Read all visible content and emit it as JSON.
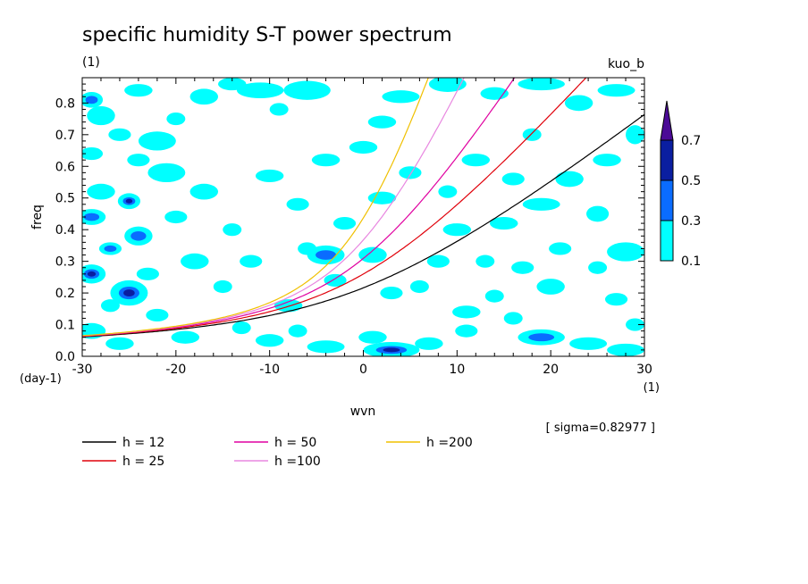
{
  "chart_data": {
    "type": "contour",
    "title": "specific humidity S-T power spectrum",
    "subtitle_left": "(1)",
    "subtitle_right": "kuo_b",
    "xlabel": "wvn",
    "ylabel": "freq",
    "x_unit": "(1)",
    "y_unit": "(day-1)",
    "xlim": [
      -30,
      30
    ],
    "ylim": [
      0,
      0.88
    ],
    "x_ticks": [
      -30,
      -20,
      -10,
      0,
      10,
      20,
      30
    ],
    "x_tick_labels": [
      "-30",
      "-20",
      "-10",
      "0",
      "10",
      "20",
      "30"
    ],
    "y_ticks": [
      0.0,
      0.1,
      0.2,
      0.3,
      0.4,
      0.5,
      0.6,
      0.7,
      0.8
    ],
    "y_tick_labels": [
      "0.0",
      "0.1",
      "0.2",
      "0.3",
      "0.4",
      "0.5",
      "0.6",
      "0.7",
      "0.8"
    ],
    "sigma_text": "[ sigma=0.82977 ]",
    "colorbar": {
      "levels": [
        "0.1",
        "0.3",
        "0.5",
        "0.7"
      ],
      "colors": [
        "#00ffff",
        "#0a6cff",
        "#0a1ea0",
        "#4b0a96"
      ]
    },
    "dispersion_curves": [
      {
        "name": "h = 12",
        "h": 12,
        "color": "#000000"
      },
      {
        "name": "h = 25",
        "h": 25,
        "color": "#e0000a"
      },
      {
        "name": "h = 50",
        "h": 50,
        "color": "#e000a0"
      },
      {
        "name": "h =100",
        "h": 100,
        "color": "#e887e0"
      },
      {
        "name": "h =200",
        "h": 200,
        "color": "#f0c000"
      }
    ],
    "blobs": [
      [
        -29,
        0.81,
        1.2,
        0.025,
        1
      ],
      [
        -28,
        0.76,
        1.5,
        0.03,
        0
      ],
      [
        -26,
        0.7,
        1.2,
        0.02,
        0
      ],
      [
        -24,
        0.84,
        1.5,
        0.02,
        0
      ],
      [
        -22,
        0.68,
        2.0,
        0.03,
        0
      ],
      [
        -20,
        0.75,
        1.0,
        0.02,
        0
      ],
      [
        -17,
        0.82,
        1.5,
        0.025,
        0
      ],
      [
        -14,
        0.86,
        1.5,
        0.02,
        0
      ],
      [
        -11,
        0.84,
        2.5,
        0.025,
        0
      ],
      [
        -9,
        0.78,
        1.0,
        0.02,
        0
      ],
      [
        -6,
        0.84,
        2.5,
        0.03,
        0
      ],
      [
        -4,
        0.62,
        1.5,
        0.02,
        0
      ],
      [
        0,
        0.66,
        1.5,
        0.02,
        0
      ],
      [
        2,
        0.74,
        1.5,
        0.02,
        0
      ],
      [
        4,
        0.82,
        2.0,
        0.02,
        0
      ],
      [
        9,
        0.86,
        2.0,
        0.025,
        0
      ],
      [
        14,
        0.83,
        1.5,
        0.02,
        0
      ],
      [
        19,
        0.86,
        2.5,
        0.02,
        0
      ],
      [
        23,
        0.8,
        1.5,
        0.025,
        0
      ],
      [
        27,
        0.84,
        2.0,
        0.02,
        0
      ],
      [
        29,
        0.7,
        1.0,
        0.03,
        0
      ],
      [
        26,
        0.62,
        1.5,
        0.02,
        0
      ],
      [
        22,
        0.56,
        1.5,
        0.025,
        0
      ],
      [
        19,
        0.48,
        2.0,
        0.02,
        0
      ],
      [
        25,
        0.45,
        1.2,
        0.025,
        0
      ],
      [
        28,
        0.33,
        2.0,
        0.03,
        0
      ],
      [
        25,
        0.28,
        1.0,
        0.02,
        0
      ],
      [
        20,
        0.22,
        1.5,
        0.025,
        0
      ],
      [
        17,
        0.28,
        1.2,
        0.02,
        0
      ],
      [
        14,
        0.19,
        1.0,
        0.02,
        0
      ],
      [
        11,
        0.14,
        1.5,
        0.02,
        0
      ],
      [
        19,
        0.06,
        2.5,
        0.025,
        1
      ],
      [
        24,
        0.04,
        2.0,
        0.02,
        0
      ],
      [
        28,
        0.02,
        2.0,
        0.02,
        0
      ],
      [
        13,
        0.3,
        1.0,
        0.02,
        0
      ],
      [
        10,
        0.4,
        1.5,
        0.02,
        0
      ],
      [
        -29,
        0.64,
        1.2,
        0.02,
        0
      ],
      [
        -28,
        0.52,
        1.5,
        0.025,
        0
      ],
      [
        -29,
        0.44,
        1.5,
        0.025,
        1
      ],
      [
        -25,
        0.49,
        1.2,
        0.025,
        2
      ],
      [
        -24,
        0.38,
        1.5,
        0.03,
        1
      ],
      [
        -27,
        0.34,
        1.2,
        0.02,
        1
      ],
      [
        -29,
        0.26,
        1.5,
        0.03,
        2
      ],
      [
        -25,
        0.2,
        2.0,
        0.04,
        2
      ],
      [
        -22,
        0.13,
        1.2,
        0.02,
        0
      ],
      [
        -29,
        0.08,
        1.5,
        0.025,
        0
      ],
      [
        -26,
        0.04,
        1.5,
        0.02,
        0
      ],
      [
        -19,
        0.06,
        1.5,
        0.02,
        0
      ],
      [
        -13,
        0.09,
        1.0,
        0.02,
        0
      ],
      [
        -10,
        0.05,
        1.5,
        0.02,
        0
      ],
      [
        -7,
        0.08,
        1.0,
        0.02,
        0
      ],
      [
        -4,
        0.03,
        2.0,
        0.02,
        0
      ],
      [
        1,
        0.06,
        1.5,
        0.02,
        0
      ],
      [
        3,
        0.02,
        3.0,
        0.025,
        2
      ],
      [
        7,
        0.04,
        1.5,
        0.02,
        0
      ],
      [
        -18,
        0.3,
        1.5,
        0.025,
        0
      ],
      [
        -14,
        0.4,
        1.0,
        0.02,
        0
      ],
      [
        -17,
        0.52,
        1.5,
        0.025,
        0
      ],
      [
        -21,
        0.58,
        2.0,
        0.03,
        0
      ],
      [
        -24,
        0.62,
        1.2,
        0.02,
        0
      ],
      [
        -10,
        0.57,
        1.5,
        0.02,
        0
      ],
      [
        -7,
        0.48,
        1.2,
        0.02,
        0
      ],
      [
        -4,
        0.32,
        2.0,
        0.03,
        1
      ],
      [
        -3,
        0.24,
        1.2,
        0.02,
        0
      ],
      [
        1,
        0.32,
        1.5,
        0.025,
        0
      ],
      [
        3,
        0.2,
        1.2,
        0.02,
        0
      ],
      [
        6,
        0.22,
        1.0,
        0.02,
        0
      ],
      [
        8,
        0.3,
        1.2,
        0.02,
        0
      ],
      [
        2,
        0.5,
        1.5,
        0.02,
        0
      ],
      [
        5,
        0.58,
        1.2,
        0.02,
        0
      ],
      [
        9,
        0.52,
        1.0,
        0.02,
        0
      ],
      [
        12,
        0.62,
        1.5,
        0.02,
        0
      ],
      [
        16,
        0.56,
        1.2,
        0.02,
        0
      ],
      [
        18,
        0.7,
        1.0,
        0.02,
        0
      ],
      [
        21,
        0.34,
        1.2,
        0.02,
        0
      ],
      [
        -15,
        0.22,
        1.0,
        0.02,
        0
      ],
      [
        -8,
        0.16,
        1.5,
        0.02,
        0
      ],
      [
        -6,
        0.34,
        1.0,
        0.02,
        0
      ],
      [
        -20,
        0.44,
        1.2,
        0.02,
        0
      ],
      [
        -12,
        0.3,
        1.2,
        0.02,
        0
      ],
      [
        -2,
        0.42,
        1.2,
        0.02,
        0
      ],
      [
        15,
        0.42,
        1.5,
        0.02,
        0
      ],
      [
        11,
        0.08,
        1.2,
        0.02,
        0
      ],
      [
        16,
        0.12,
        1.0,
        0.02,
        0
      ],
      [
        -27,
        0.16,
        1.0,
        0.02,
        0
      ],
      [
        -23,
        0.26,
        1.2,
        0.02,
        0
      ],
      [
        27,
        0.18,
        1.2,
        0.02,
        0
      ],
      [
        29,
        0.1,
        1.0,
        0.02,
        0
      ]
    ]
  },
  "legend": {
    "items": [
      {
        "label": "h = 12",
        "color": "#000000"
      },
      {
        "label": "h = 25",
        "color": "#e0000a"
      },
      {
        "label": "h = 50",
        "color": "#e000a0"
      },
      {
        "label": "h =100",
        "color": "#e887e0"
      },
      {
        "label": "h =200",
        "color": "#f0c000"
      }
    ]
  }
}
